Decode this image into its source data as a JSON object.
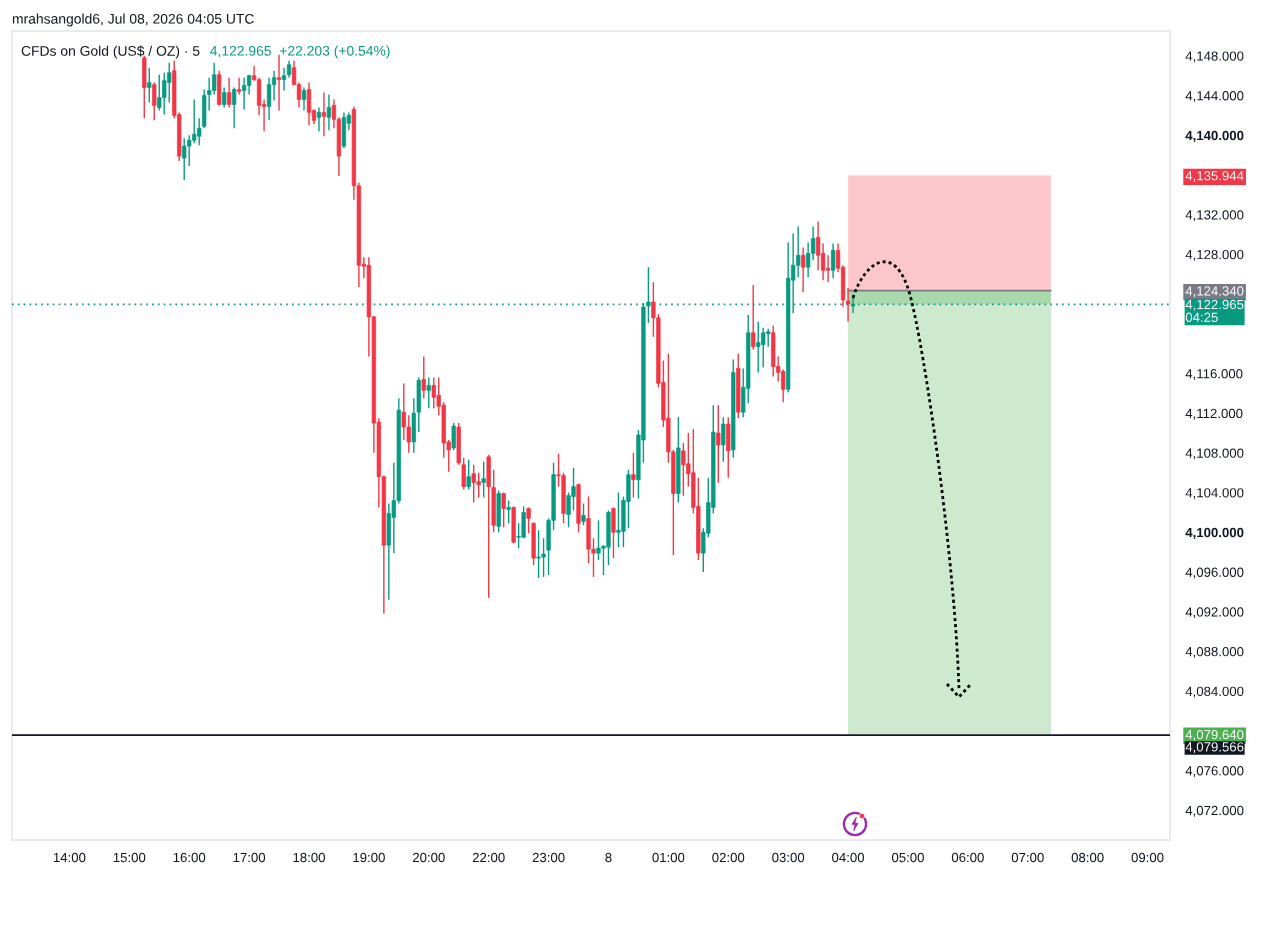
{
  "chart_data": {
    "type": "candlestick",
    "title": "CFDs on Gold (US$ / OZ) · 5",
    "subtitle": "4,122.965  +22.203 (+0.54%)",
    "annotations": [
      "mrahsangold6, Jul 08, 2026 04:05 UTC"
    ],
    "categories": [
      null,
      null,
      null,
      null,
      null,
      null,
      null,
      null,
      null,
      null,
      null,
      "14:00",
      null,
      null,
      null,
      null,
      null,
      null,
      null,
      null,
      null,
      null,
      null,
      "15:00",
      null,
      null,
      null,
      null,
      null,
      null,
      null,
      null,
      null,
      null,
      null,
      "16:00",
      null,
      null,
      null,
      null,
      null,
      null,
      null,
      null,
      null,
      null,
      null,
      "17:00",
      null,
      null,
      null,
      null,
      null,
      null,
      null,
      null,
      null,
      null,
      null,
      "18:00",
      null,
      null,
      null,
      null,
      null,
      null,
      null,
      null,
      null,
      null,
      null,
      "19:00",
      null,
      null,
      null,
      null,
      null,
      null,
      null,
      null,
      null,
      null,
      null,
      "20:00",
      null,
      null,
      null,
      null,
      null,
      null,
      null,
      null,
      null,
      null,
      null,
      "22:00",
      null,
      null,
      null,
      null,
      null,
      null,
      null,
      null,
      null,
      null,
      null,
      "23:00",
      null,
      null,
      null,
      null,
      null,
      null,
      null,
      null,
      null,
      null,
      null,
      "8",
      null,
      null,
      null,
      null,
      null,
      null,
      null,
      null,
      null,
      null,
      null,
      "01:00",
      null,
      null,
      null,
      null,
      null,
      null,
      null,
      null,
      null,
      null,
      null,
      "02:00",
      null,
      null,
      null,
      null,
      null,
      null,
      null,
      null,
      null,
      null,
      null,
      "03:00",
      null,
      null,
      null,
      null,
      null,
      null,
      null,
      null,
      null,
      null,
      null,
      "04:00",
      null,
      null,
      null,
      null,
      null,
      null,
      null,
      null,
      null,
      null,
      null,
      "05:00",
      null,
      null,
      null,
      null,
      null,
      null,
      null,
      null,
      null,
      null,
      null,
      "06:00",
      null,
      null,
      null,
      null,
      null,
      null,
      null,
      null,
      null,
      null,
      null,
      "07:00",
      null,
      null,
      null,
      null,
      null,
      null,
      null,
      null,
      null,
      null,
      null,
      "08:00",
      null,
      null,
      null,
      null,
      null,
      null,
      null,
      null,
      null,
      null,
      null,
      "09:00",
      null,
      null,
      null,
      null
    ],
    "ohlc": [
      null,
      null,
      null,
      null,
      null,
      null,
      null,
      null,
      null,
      null,
      null,
      null,
      null,
      null,
      null,
      null,
      null,
      null,
      null,
      null,
      null,
      null,
      null,
      null,
      null,
      null,
      [
        4147.8,
        4148.0,
        4141.7,
        4144.8
      ],
      [
        4144.8,
        4146.8,
        4143.3,
        4145.3
      ],
      [
        4145.1,
        4145.3,
        4141.5,
        4143.0
      ],
      [
        4142.8,
        4146.1,
        4142.5,
        4143.8
      ],
      [
        4143.8,
        4146.3,
        4142.1,
        4145.5
      ],
      [
        4145.3,
        4147.3,
        4143.3,
        4146.3
      ],
      [
        4146.5,
        4147.5,
        4141.7,
        4142.0
      ],
      [
        4142.1,
        4142.3,
        4137.4,
        4137.9
      ],
      [
        4137.7,
        4139.7,
        4135.5,
        4138.9
      ],
      [
        4138.9,
        4140.0,
        4136.9,
        4139.5
      ],
      [
        4139.5,
        4143.6,
        4139.2,
        4140.1
      ],
      [
        4139.9,
        4141.7,
        4139.0,
        4140.7
      ],
      [
        4140.9,
        4144.6,
        4140.7,
        4144.0
      ],
      [
        4144.1,
        4145.8,
        4142.5,
        4144.5
      ],
      [
        4144.5,
        4147.3,
        4144.1,
        4146.1
      ],
      [
        4146.1,
        4146.5,
        4143.0,
        4143.1
      ],
      [
        4143.1,
        4144.8,
        4142.8,
        4144.3
      ],
      [
        4144.3,
        4145.8,
        4142.8,
        4143.1
      ],
      [
        4143.1,
        4144.8,
        4140.7,
        4144.6
      ],
      [
        4144.6,
        4145.8,
        4144.1,
        4144.4
      ],
      [
        4144.5,
        4145.8,
        4142.6,
        4145.0
      ],
      [
        4145.0,
        4146.1,
        4144.1,
        4146.0
      ],
      [
        4146.0,
        4147.0,
        4145.5,
        4145.6
      ],
      [
        4145.6,
        4145.8,
        4142.0,
        4143.0
      ],
      [
        4143.1,
        4143.6,
        4140.4,
        4142.9
      ],
      [
        4142.9,
        4145.8,
        4141.5,
        4145.1
      ],
      [
        4145.1,
        4146.5,
        4143.5,
        4145.8
      ],
      [
        4145.8,
        4148.1,
        4142.5,
        4145.6
      ],
      [
        4145.6,
        4146.8,
        4144.5,
        4146.0
      ],
      [
        4146.1,
        4147.5,
        4145.8,
        4147.1
      ],
      [
        4146.8,
        4147.5,
        4145.0,
        4145.1
      ],
      [
        4145.1,
        4145.3,
        4142.8,
        4143.6
      ],
      [
        4143.6,
        4144.8,
        4142.5,
        4144.5
      ],
      [
        4144.6,
        4145.3,
        4141.0,
        4142.3
      ],
      [
        4142.5,
        4142.6,
        4141.1,
        4141.5
      ],
      [
        4141.8,
        4142.8,
        4140.4,
        4142.3
      ],
      [
        4142.3,
        4144.3,
        4139.9,
        4141.9
      ],
      [
        4141.8,
        4144.1,
        4140.5,
        4142.8
      ],
      [
        4143.0,
        4143.6,
        4140.7,
        4141.6
      ],
      [
        4141.6,
        4141.8,
        4135.9,
        4137.9
      ],
      [
        4138.9,
        4142.3,
        4138.7,
        4141.8
      ],
      [
        4141.2,
        4142.3,
        4140.5,
        4142.0
      ],
      [
        4142.6,
        4142.9,
        4133.5,
        4134.9
      ],
      [
        4134.9,
        4135.2,
        4124.7,
        4126.9
      ],
      [
        4127.0,
        4127.7,
        4125.6,
        4126.8
      ],
      [
        4126.9,
        4127.7,
        4117.7,
        4121.7
      ],
      [
        4121.7,
        4121.8,
        4108.0,
        4111.0
      ],
      [
        4111.1,
        4111.5,
        4102.5,
        4105.6
      ],
      [
        4105.6,
        4105.7,
        4091.8,
        4098.7
      ],
      [
        4098.7,
        4102.9,
        4093.2,
        4101.9
      ],
      [
        4101.5,
        4107.0,
        4097.9,
        4103.2
      ],
      [
        4103.2,
        4113.5,
        4102.9,
        4112.3
      ],
      [
        4112.1,
        4115.0,
        4109.3,
        4110.6
      ],
      [
        4110.6,
        4111.8,
        4108.0,
        4109.1
      ],
      [
        4109.1,
        4113.5,
        4108.0,
        4112.0
      ],
      [
        4112.1,
        4115.6,
        4110.1,
        4115.3
      ],
      [
        4115.4,
        4117.7,
        4113.5,
        4114.3
      ],
      [
        4114.3,
        4115.6,
        4112.5,
        4114.8
      ],
      [
        4114.8,
        4115.6,
        4112.5,
        4113.6
      ],
      [
        4113.8,
        4115.6,
        4111.8,
        4112.7
      ],
      [
        4112.8,
        4113.1,
        4107.5,
        4109.0
      ],
      [
        4109.1,
        4109.3,
        4106.1,
        4108.3
      ],
      [
        4108.5,
        4111.0,
        4108.3,
        4110.7
      ],
      [
        4110.6,
        4111.0,
        4106.8,
        4107.0
      ],
      [
        4106.8,
        4107.5,
        4104.3,
        4104.6
      ],
      [
        4104.6,
        4107.3,
        4104.3,
        4105.6
      ],
      [
        4105.9,
        4106.8,
        4103.0,
        4105.0
      ],
      [
        4105.1,
        4106.0,
        4103.5,
        4104.8
      ],
      [
        4105.0,
        4107.1,
        4103.5,
        4105.4
      ],
      [
        4107.6,
        4107.8,
        4093.4,
        4104.6
      ],
      [
        4104.5,
        4106.3,
        4100.0,
        4100.7
      ],
      [
        4100.6,
        4104.2,
        4100.0,
        4103.9
      ],
      [
        4103.9,
        4104.0,
        4100.5,
        4102.4
      ],
      [
        4102.3,
        4103.2,
        4100.9,
        4102.5
      ],
      [
        4102.5,
        4102.6,
        4098.9,
        4099.0
      ],
      [
        4099.5,
        4100.9,
        4098.4,
        4099.6
      ],
      [
        4099.5,
        4102.6,
        4099.4,
        4102.0
      ],
      [
        4102.4,
        4102.5,
        4099.9,
        4101.4
      ],
      [
        4100.9,
        4101.0,
        4096.7,
        4097.4
      ],
      [
        4097.4,
        4100.2,
        4095.4,
        4097.5
      ],
      [
        4097.5,
        4099.4,
        4095.5,
        4097.8
      ],
      [
        4098.2,
        4101.4,
        4095.7,
        4101.2
      ],
      [
        4101.2,
        4107.0,
        4100.2,
        4105.8
      ],
      [
        4105.8,
        4107.9,
        4104.6,
        4105.7
      ],
      [
        4105.7,
        4106.0,
        4100.9,
        4101.9
      ],
      [
        4101.8,
        4104.0,
        4100.5,
        4103.7
      ],
      [
        4103.6,
        4106.5,
        4102.2,
        4104.6
      ],
      [
        4104.8,
        4104.9,
        4100.0,
        4100.9
      ],
      [
        4101.1,
        4102.9,
        4100.7,
        4101.7
      ],
      [
        4101.4,
        4103.6,
        4096.9,
        4098.3
      ],
      [
        4098.3,
        4099.4,
        4095.5,
        4097.9
      ],
      [
        4097.9,
        4101.2,
        4097.2,
        4098.4
      ],
      [
        4098.4,
        4098.7,
        4095.7,
        4098.6
      ],
      [
        4098.5,
        4102.2,
        4096.7,
        4102.0
      ],
      [
        4102.4,
        4102.5,
        4097.4,
        4100.0
      ],
      [
        4100.0,
        4104.0,
        4098.5,
        4100.2
      ],
      [
        4100.1,
        4103.6,
        4098.5,
        4103.2
      ],
      [
        4103.1,
        4106.3,
        4100.4,
        4105.8
      ],
      [
        4105.8,
        4108.0,
        4103.5,
        4105.3
      ],
      [
        4105.3,
        4110.3,
        4103.4,
        4109.8
      ],
      [
        4109.3,
        4123.1,
        4107.0,
        4122.7
      ],
      [
        4122.8,
        4126.7,
        4121.1,
        4123.2
      ],
      [
        4123.2,
        4125.2,
        4119.7,
        4121.6
      ],
      [
        4121.6,
        4122.0,
        4114.6,
        4115.0
      ],
      [
        4115.1,
        4117.3,
        4110.6,
        4111.3
      ],
      [
        4111.5,
        4118.0,
        4107.0,
        4108.1
      ],
      [
        4108.1,
        4108.3,
        4097.7,
        4103.9
      ],
      [
        4103.9,
        4111.6,
        4103.0,
        4108.5
      ],
      [
        4108.2,
        4109.0,
        4103.7,
        4106.8
      ],
      [
        4106.9,
        4110.0,
        4104.6,
        4105.9
      ],
      [
        4106.0,
        4110.4,
        4101.9,
        4102.5
      ],
      [
        4102.6,
        4105.5,
        4097.2,
        4097.9
      ],
      [
        4097.9,
        4100.4,
        4096.0,
        4100.0
      ],
      [
        4099.9,
        4105.5,
        4099.5,
        4103.0
      ],
      [
        4102.5,
        4112.8,
        4101.9,
        4110.1
      ],
      [
        4110.0,
        4112.8,
        4105.0,
        4108.8
      ],
      [
        4108.8,
        4111.6,
        4107.1,
        4110.9
      ],
      [
        4110.9,
        4111.6,
        4105.5,
        4108.2
      ],
      [
        4108.3,
        4117.4,
        4107.5,
        4116.1
      ],
      [
        4116.5,
        4118.0,
        4111.5,
        4112.1
      ],
      [
        4112.1,
        4116.5,
        4111.6,
        4114.6
      ],
      [
        4114.5,
        4121.9,
        4113.0,
        4120.1
      ],
      [
        4120.1,
        4124.9,
        4118.4,
        4118.7
      ],
      [
        4118.7,
        4121.2,
        4116.1,
        4119.1
      ],
      [
        4118.9,
        4120.6,
        4116.6,
        4120.1
      ],
      [
        4120.0,
        4120.5,
        4118.7,
        4120.2
      ],
      [
        4120.1,
        4120.8,
        4115.7,
        4116.7
      ],
      [
        4116.7,
        4117.7,
        4115.2,
        4116.1
      ],
      [
        4116.2,
        4116.4,
        4113.1,
        4114.4
      ],
      [
        4114.4,
        4129.2,
        4114.1,
        4125.6
      ],
      [
        4125.4,
        4130.1,
        4122.1,
        4126.9
      ],
      [
        4126.9,
        4130.8,
        4125.7,
        4127.9
      ],
      [
        4127.9,
        4128.7,
        4124.2,
        4126.7
      ],
      [
        4126.7,
        4129.2,
        4125.7,
        4128.1
      ],
      [
        4128.1,
        4130.8,
        4127.4,
        4129.6
      ],
      [
        4129.7,
        4131.3,
        4126.4,
        4127.9
      ],
      [
        4128.1,
        4129.1,
        4125.4,
        4126.4
      ],
      [
        4126.6,
        4127.9,
        4125.2,
        4126.4
      ],
      [
        4126.4,
        4129.1,
        4125.6,
        4128.4
      ],
      [
        4128.4,
        4129.1,
        4126.2,
        4126.6
      ],
      [
        4126.7,
        4126.9,
        4122.7,
        4123.4
      ],
      [
        4123.3,
        4124.6,
        4121.2,
        4123.0
      ],
      [
        4122.8,
        4123.8,
        4122.1,
        4122.965
      ],
      null,
      null,
      null,
      null,
      null,
      null,
      null,
      null,
      null,
      null,
      null,
      null,
      null,
      null,
      null,
      null,
      null,
      null,
      null,
      null,
      null,
      null,
      null,
      null,
      null,
      null,
      null,
      null,
      null,
      null,
      null,
      null,
      null,
      null,
      null,
      null,
      null,
      null,
      null,
      null,
      null,
      null,
      null,
      null,
      null,
      null,
      null,
      null,
      null,
      null,
      null,
      null,
      null,
      null,
      null,
      null,
      null,
      null,
      null,
      null,
      null,
      null,
      null
    ],
    "colors": [
      null,
      null,
      null,
      null,
      null,
      null,
      null,
      null,
      null,
      null,
      null,
      null,
      null,
      null,
      null,
      null,
      null,
      null,
      null,
      null,
      null,
      null,
      null,
      null,
      null,
      null,
      "#f23645",
      "#089981",
      "#f23645",
      "#089981",
      "#089981",
      "#089981",
      "#f23645",
      "#f23645",
      "#089981",
      "#089981",
      "#089981",
      "#089981",
      "#089981",
      "#089981",
      "#089981",
      "#f23645",
      "#089981",
      "#f23645",
      "#089981",
      "#f23645",
      "#089981",
      "#089981",
      "#f23645",
      "#f23645",
      "#f23645",
      "#089981",
      "#089981",
      "#f23645",
      "#089981",
      "#089981",
      "#f23645",
      "#f23645",
      "#089981",
      "#f23645",
      "#f23645",
      "#089981",
      "#f23645",
      "#089981",
      "#f23645",
      "#f23645",
      "#089981",
      "#089981",
      "#f23645",
      "#f23645",
      "#f23645",
      "#f23645",
      "#f23645",
      "#f23645",
      "#f23645",
      "#089981",
      "#089981",
      "#089981",
      "#f23645",
      "#f23645",
      "#089981",
      "#089981",
      "#f23645",
      "#089981",
      "#f23645",
      "#f23645",
      "#f23645",
      "#f23645",
      "#089981",
      "#f23645",
      "#f23645",
      "#089981",
      "#f23645",
      "#f23645",
      "#089981",
      "#f23645",
      "#f23645",
      "#089981",
      "#f23645",
      "#089981",
      "#f23645",
      "#089981",
      "#089981",
      "#f23645",
      "#f23645",
      "#089981",
      "#089981",
      "#089981",
      "#089981",
      "#f23645",
      "#f23645",
      "#089981",
      "#089981",
      "#f23645",
      "#089981",
      "#f23645",
      "#f23645",
      "#089981",
      "#089981",
      "#089981",
      "#f23645",
      "#089981",
      "#089981",
      "#089981",
      "#f23645",
      "#089981",
      "#089981",
      "#089981",
      "#f23645",
      "#f23645",
      "#f23645",
      "#f23645",
      "#f23645",
      "#089981",
      "#f23645",
      "#f23645",
      "#f23645",
      "#f23645",
      "#089981",
      "#089981",
      "#089981",
      "#f23645",
      "#089981",
      "#f23645",
      "#089981",
      "#f23645",
      "#089981",
      "#089981",
      "#f23645",
      "#089981",
      "#089981",
      "#089981",
      "#f23645",
      "#f23645",
      "#f23645",
      "#089981",
      "#089981",
      "#089981",
      "#f23645",
      "#089981",
      "#089981",
      "#f23645",
      "#f23645",
      "#f23645",
      "#089981",
      "#f23645",
      "#f23645",
      "#f23645",
      "#089981",
      null,
      null,
      null,
      null,
      null,
      null,
      null,
      null,
      null,
      null,
      null,
      null,
      null,
      null,
      null,
      null,
      null,
      null,
      null,
      null,
      null,
      null,
      null,
      null,
      null,
      null,
      null,
      null,
      null,
      null,
      null,
      null,
      null,
      null,
      null,
      null,
      null,
      null,
      null,
      null,
      null,
      null,
      null,
      null,
      null,
      null,
      null,
      null,
      null,
      null,
      null,
      null,
      null,
      null,
      null,
      null,
      null,
      null,
      null,
      null,
      null,
      null,
      null
    ],
    "ylim": [
      4069.0,
      4150.5
    ],
    "yticks": [
      {
        "value": 4072,
        "label": "4,072.000"
      },
      {
        "value": 4076,
        "label": "4,076.000"
      },
      {
        "value": 4079.64,
        "label": "4,079.640"
      },
      {
        "value": 4084,
        "label": "4,084.000"
      },
      {
        "value": 4088,
        "label": "4,088.000"
      },
      {
        "value": 4092,
        "label": "4,092.000"
      },
      {
        "value": 4096,
        "label": "4,096.000"
      },
      {
        "value": 4100,
        "label": "4,100.000"
      },
      {
        "value": 4104,
        "label": "4,104.000"
      },
      {
        "value": 4108,
        "label": "4,108.000"
      },
      {
        "value": 4112,
        "label": "4,112.000"
      },
      {
        "value": 4116,
        "label": "4,116.000"
      },
      {
        "value": 4124.34,
        "label": "4,124.340"
      },
      {
        "value": 4128,
        "label": "4,128.000"
      },
      {
        "value": 4132,
        "label": "4,132.000"
      },
      {
        "value": 4135.944,
        "label": "4,135.944"
      },
      {
        "value": 4140,
        "label": "4,140.000"
      },
      {
        "value": 4144,
        "label": "4,144.000"
      },
      {
        "value": 4148,
        "label": "4,148.000"
      }
    ],
    "ref_lines": [
      {
        "axis": "y",
        "value": 4124.34,
        "color": "#787b86",
        "line_style": "solid"
      },
      {
        "axis": "y",
        "value": 4122.965,
        "label": "4,122.965\n04:25",
        "color": "#089981",
        "line_style": "dotted"
      },
      {
        "axis": "y",
        "value": 4079.566,
        "label": "4,079.566",
        "color": "#131722",
        "line_style": "solid"
      }
    ],
    "bands": [
      {
        "axis": "y",
        "from": 4124.34,
        "to": 4135.944,
        "color": "#f23645"
      },
      {
        "axis": "y",
        "from": 4079.64,
        "to": 4124.34,
        "color": "#4caf50"
      },
      {
        "axis": "y",
        "from": 4122.965,
        "to": 4124.34,
        "color": "#4caf50"
      }
    ]
  }
}
